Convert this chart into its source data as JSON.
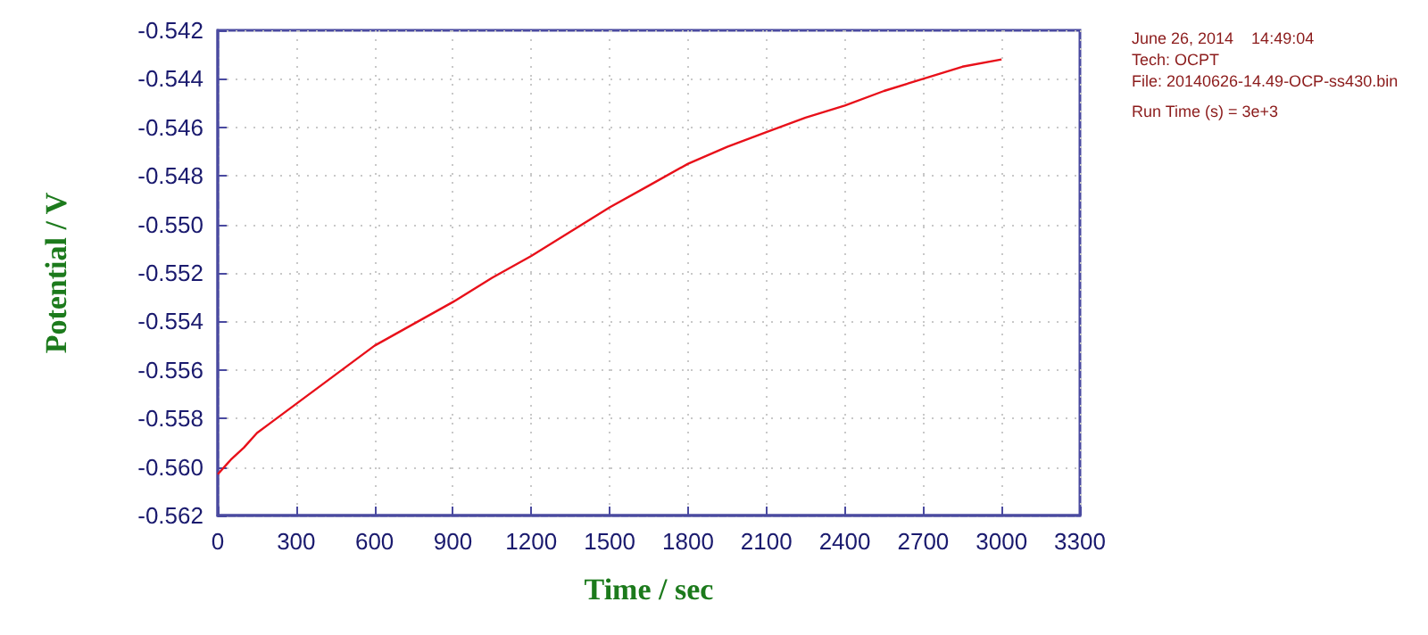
{
  "chart_data": {
    "type": "line",
    "xlabel": "Time / sec",
    "ylabel": "Potential / V",
    "x": [
      0,
      50,
      100,
      150,
      200,
      300,
      400,
      500,
      600,
      750,
      900,
      1050,
      1200,
      1350,
      1500,
      1650,
      1800,
      1950,
      2100,
      2250,
      2400,
      2550,
      2700,
      2850,
      3000
    ],
    "series": [
      {
        "color": "#e8101a",
        "values": [
          -0.5603,
          -0.5597,
          -0.5592,
          -0.5586,
          -0.5582,
          -0.5574,
          -0.5566,
          -0.5558,
          -0.555,
          -0.5541,
          -0.5532,
          -0.5522,
          -0.5513,
          -0.5503,
          -0.5493,
          -0.5484,
          -0.5475,
          -0.5468,
          -0.5462,
          -0.5456,
          -0.5451,
          -0.5445,
          -0.544,
          -0.5435,
          -0.5432
        ]
      }
    ],
    "xlim": [
      0,
      3300
    ],
    "xticks": [
      0,
      300,
      600,
      900,
      1200,
      1500,
      1800,
      2100,
      2400,
      2700,
      3000,
      3300
    ],
    "ylim": [
      -0.562,
      -0.542
    ],
    "yticks": [
      -0.562,
      {
        "value": -0.56,
        "label": "-0.560"
      },
      -0.558,
      -0.556,
      -0.554,
      -0.552,
      {
        "value": -0.55,
        "label": "-0.550"
      },
      -0.548,
      -0.546,
      -0.544,
      -0.542
    ],
    "grid": true,
    "marker": "none",
    "line_style": "solid",
    "annotations": [
      "June 26, 2014    14:49:04",
      "Tech: OCPT",
      "File: 20140626-14.49-OCP-ss430.bin",
      "Run Time (s) = 3e+3"
    ]
  }
}
